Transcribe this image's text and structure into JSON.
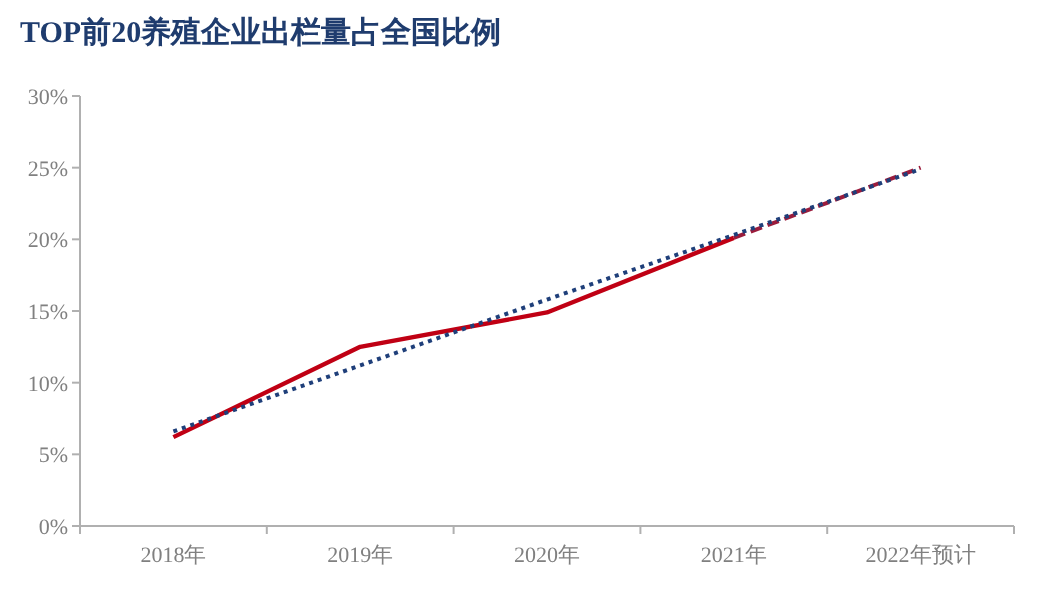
{
  "chart_data": {
    "type": "line",
    "title": "TOP前20养殖企业出栏量占全国比例",
    "categories": [
      "2018年",
      "2019年",
      "2020年",
      "2021年",
      "2022年预计"
    ],
    "ylim": [
      0,
      30
    ],
    "yticks": [
      {
        "value": 0,
        "label": "0%"
      },
      {
        "value": 5,
        "label": "5%"
      },
      {
        "value": 10,
        "label": "10%"
      },
      {
        "value": 15,
        "label": "15%"
      },
      {
        "value": 20,
        "label": "20%"
      },
      {
        "value": 25,
        "label": "25%"
      },
      {
        "value": 30,
        "label": "30%"
      }
    ],
    "grid": false,
    "marker": "none",
    "series": [
      {
        "color": "#c00014",
        "line_style": "solid",
        "values": [
          6.2,
          12.5,
          14.9,
          20.1,
          null
        ]
      },
      {
        "color": "#9b1c3c",
        "line_style": "dashed",
        "values": [
          null,
          null,
          null,
          20.1,
          25.0
        ]
      },
      {
        "color": "#1f3f7a",
        "line_style": "dotted",
        "values": [
          6.6,
          11.2,
          15.8,
          20.3,
          24.9
        ]
      }
    ]
  }
}
